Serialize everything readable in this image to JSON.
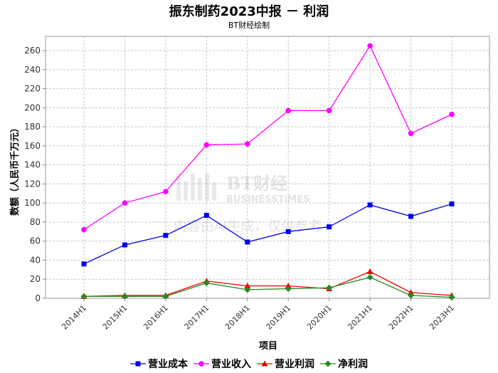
{
  "chart_data": {
    "type": "line",
    "title": "振东制药2023中报 － 利润",
    "subtitle": "BT财经绘制",
    "xlabel": "项目",
    "ylabel": "数额（人民币千万元）",
    "ylim": [
      0,
      275
    ],
    "yticks": [
      0,
      20,
      40,
      60,
      80,
      100,
      120,
      140,
      160,
      180,
      200,
      220,
      240,
      260
    ],
    "categories": [
      "2014H1",
      "2015H1",
      "2016H1",
      "2017H1",
      "2018H1",
      "2019H1",
      "2020H1",
      "2021H1",
      "2022H1",
      "2023H1"
    ],
    "grid": true,
    "legend_position": "bottom",
    "series": [
      {
        "name": "营业成本",
        "color": "#0000ee",
        "marker": "square",
        "values": [
          36,
          56,
          66,
          87,
          59,
          70,
          75,
          98,
          86,
          99
        ]
      },
      {
        "name": "营业收入",
        "color": "#ff00ff",
        "marker": "circle",
        "values": [
          72,
          100,
          112,
          161,
          162,
          197,
          197,
          265,
          173,
          193
        ]
      },
      {
        "name": "营业利润",
        "color": "#ee0000",
        "marker": "triangle",
        "values": [
          2,
          3,
          3,
          18,
          13,
          13,
          10,
          28,
          6,
          3
        ]
      },
      {
        "name": "净利润",
        "color": "#228b22",
        "marker": "diamond",
        "values": [
          2,
          2,
          2,
          16,
          9,
          10,
          11,
          22,
          3,
          1
        ]
      }
    ]
  },
  "watermark": {
    "logo_text": "BT财经",
    "logo_subtext": "BUSINESSTIMES",
    "notice": "内容由AI生成，仅供参考"
  }
}
